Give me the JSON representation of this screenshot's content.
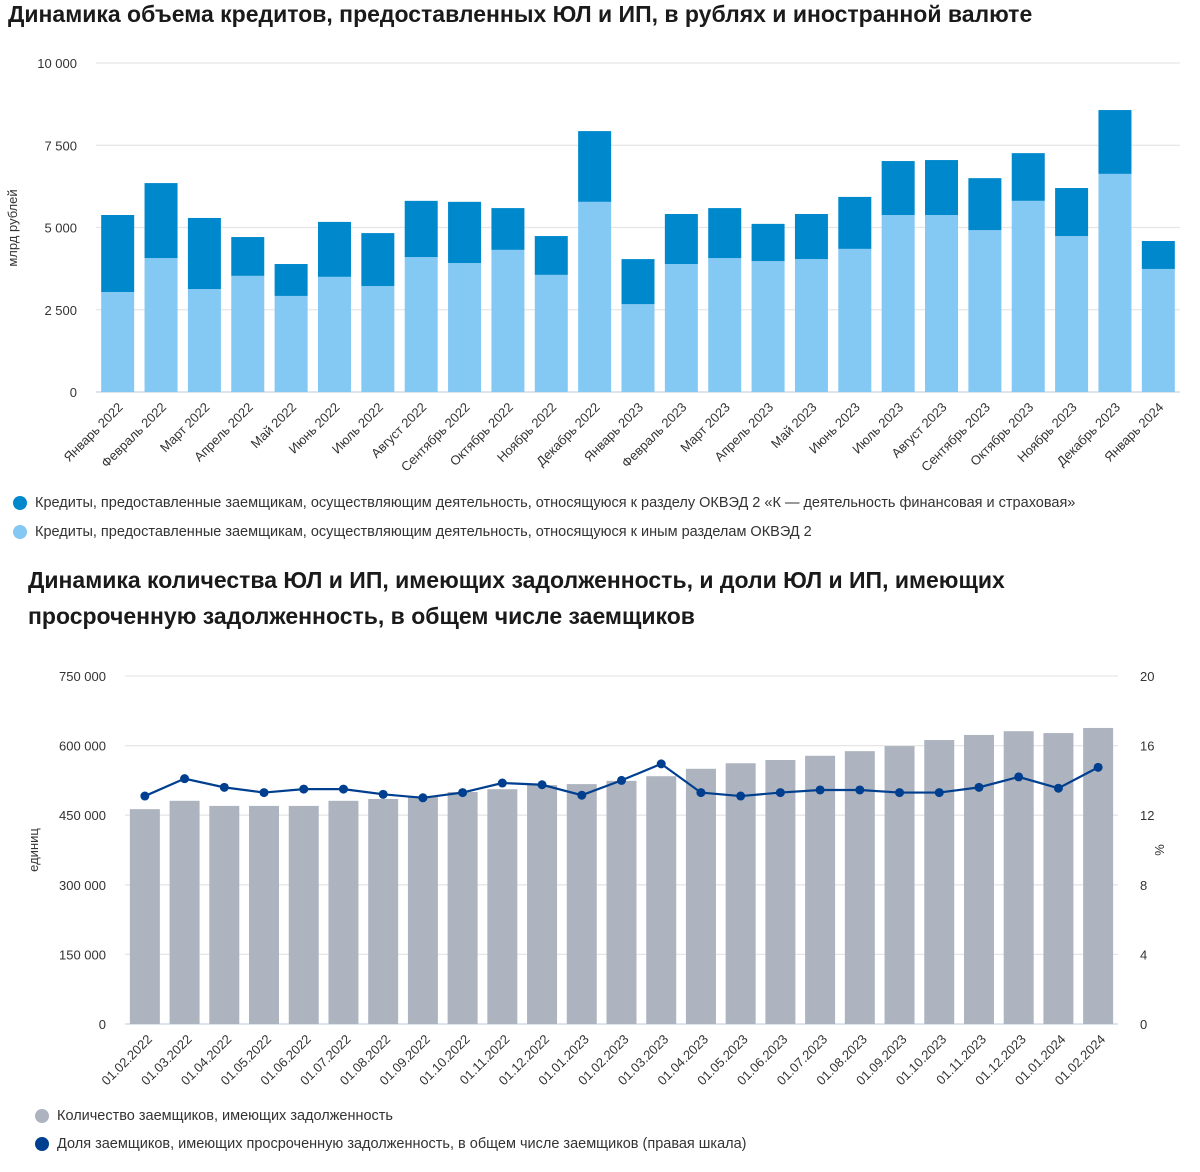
{
  "chart_data": [
    {
      "type": "bar",
      "stacked": true,
      "title": "Динамика объема кредитов, предоставленных ЮЛ и ИП, в рублях и иностранной валюте",
      "ylabel": "млрд рублей",
      "ylim": [
        0,
        10000
      ],
      "yticks": [
        "0",
        "2 500",
        "5 000",
        "7 500",
        "10 000"
      ],
      "grid": true,
      "legend_position": "bottom",
      "categories": [
        "Январь 2022",
        "Февраль 2022",
        "Март 2022",
        "Апрель 2022",
        "Май 2022",
        "Июнь 2022",
        "Июль 2022",
        "Август 2022",
        "Сентябрь 2022",
        "Октябрь 2022",
        "Ноябрь 2022",
        "Декабрь 2022",
        "Январь 2023",
        "Февраль 2023",
        "Март 2023",
        "Апрель 2023",
        "Май 2023",
        "Июнь 2023",
        "Июль 2023",
        "Август 2023",
        "Сентябрь 2023",
        "Октябрь 2023",
        "Ноябрь 2023",
        "Декабрь 2023",
        "Январь 2024"
      ],
      "series": [
        {
          "name": "Кредиты, предоставленные заемщикам, осуществляющим деятельность, относящуюся к иным разделам ОКВЭД 2",
          "color": "#84c8f4",
          "values": [
            3040,
            4070,
            3130,
            3530,
            2920,
            3500,
            3220,
            4100,
            3920,
            4320,
            3560,
            5780,
            2670,
            3890,
            4070,
            3980,
            4040,
            4350,
            5380,
            5380,
            4920,
            5810,
            4740,
            6630,
            3740
          ]
        },
        {
          "name": "Кредиты, предоставленные заемщикам, осуществляющим деятельность, относящуюся к разделу ОКВЭД 2 «К — деятельность финансовая и страховая»",
          "color": "#0088cc",
          "values": [
            2340,
            2280,
            2160,
            1180,
            970,
            1670,
            1610,
            1710,
            1860,
            1270,
            1180,
            2150,
            1370,
            1520,
            1520,
            1130,
            1370,
            1580,
            1640,
            1670,
            1580,
            1450,
            1460,
            1940,
            850
          ]
        }
      ]
    },
    {
      "type": "bar+line",
      "title": "Динамика количества ЮЛ и ИП, имеющих задолженность, и доли ЮЛ и ИП, имеющих просроченную задолженность, в общем числе заемщиков",
      "ylabel": "единиц",
      "ylabel_right": "%",
      "ylim": [
        0,
        750000
      ],
      "ylim_right": [
        0,
        20
      ],
      "yticks": [
        "0",
        "150 000",
        "300 000",
        "450 000",
        "600 000",
        "750 000"
      ],
      "yticks_right": [
        "0",
        "4",
        "8",
        "12",
        "16",
        "20"
      ],
      "grid": true,
      "legend_position": "bottom",
      "categories": [
        "01.02.2022",
        "01.03.2022",
        "01.04.2022",
        "01.05.2022",
        "01.06.2022",
        "01.07.2022",
        "01.08.2022",
        "01.09.2022",
        "01.10.2022",
        "01.11.2022",
        "01.12.2022",
        "01.01.2023",
        "01.02.2023",
        "01.03.2023",
        "01.04.2023",
        "01.05.2023",
        "01.06.2023",
        "01.07.2023",
        "01.08.2023",
        "01.09.2023",
        "01.10.2023",
        "01.11.2023",
        "01.12.2023",
        "01.01.2024",
        "01.02.2024"
      ],
      "series": [
        {
          "name": "Количество заемщиков, имеющих задолженность",
          "type": "bar",
          "color": "#adb4bf",
          "values": [
            463000,
            481000,
            470000,
            470000,
            470000,
            481000,
            485000,
            491000,
            500000,
            506000,
            515000,
            517000,
            524000,
            534000,
            550000,
            562000,
            569000,
            578000,
            588000,
            599000,
            612000,
            623000,
            631000,
            627000,
            638000
          ]
        },
        {
          "name": "Доля заемщиков, имеющих просроченную задолженность, в общем числе заемщиков (правая шкала)",
          "type": "line",
          "axis": "right",
          "color": "#003f8f",
          "values": [
            13.1,
            14.1,
            13.6,
            13.3,
            13.5,
            13.5,
            13.2,
            13.0,
            13.3,
            13.85,
            13.75,
            13.15,
            14.0,
            14.95,
            13.3,
            13.1,
            13.3,
            13.45,
            13.45,
            13.3,
            13.3,
            13.6,
            14.2,
            13.55,
            14.75
          ]
        }
      ]
    }
  ]
}
